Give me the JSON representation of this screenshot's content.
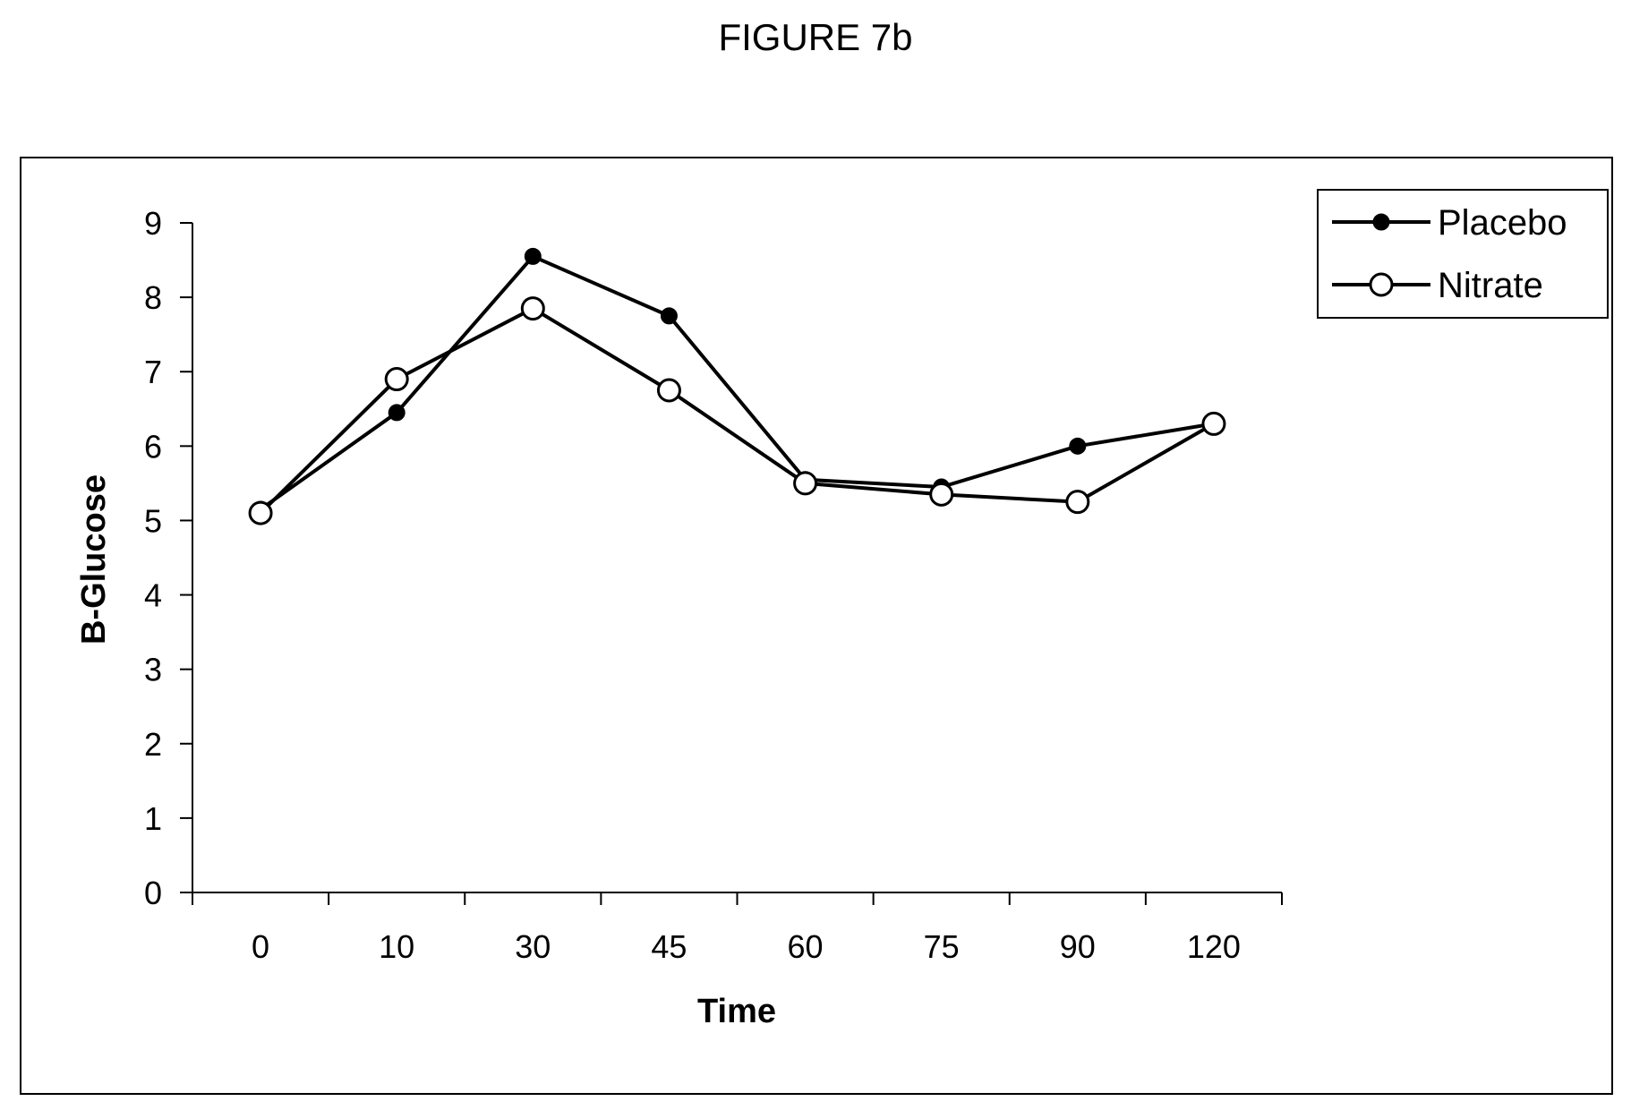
{
  "figure_title": "FIGURE 7b",
  "chart_data": {
    "type": "line",
    "title": "",
    "xlabel": "Time",
    "ylabel": "B-Glucose",
    "categories": [
      "0",
      "10",
      "30",
      "45",
      "60",
      "75",
      "90",
      "120"
    ],
    "ylim": [
      0,
      9
    ],
    "yticks": [
      0,
      1,
      2,
      3,
      4,
      5,
      6,
      7,
      8,
      9
    ],
    "grid": false,
    "legend_position": "top-right",
    "series": [
      {
        "name": "Placebo",
        "marker": "filled-circle",
        "color": "#000000",
        "values": [
          5.15,
          6.45,
          8.55,
          7.75,
          5.55,
          5.45,
          6.0,
          6.3
        ]
      },
      {
        "name": "Nitrate",
        "marker": "open-circle",
        "color": "#000000",
        "values": [
          5.1,
          6.9,
          7.85,
          6.75,
          5.5,
          5.35,
          5.25,
          6.3
        ]
      }
    ]
  }
}
